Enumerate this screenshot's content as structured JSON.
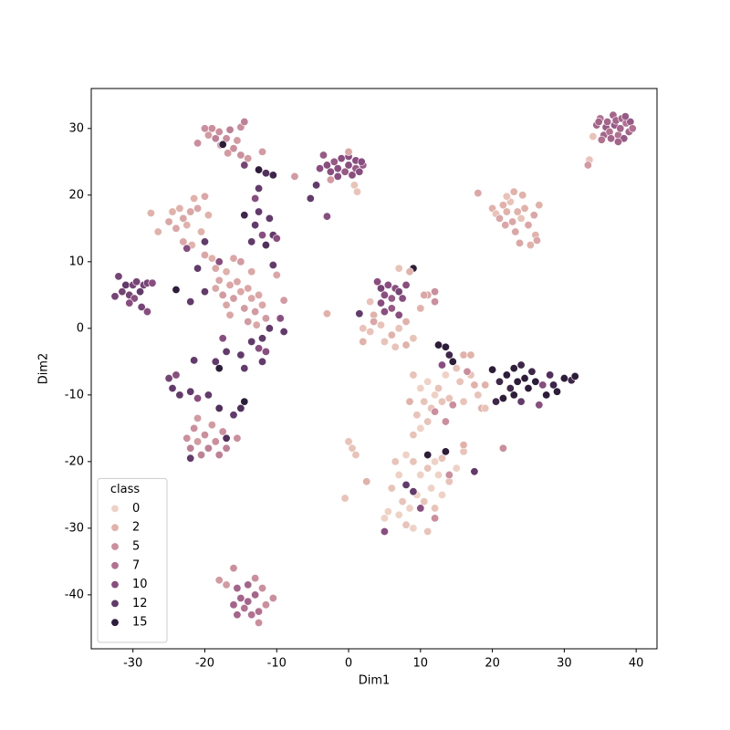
{
  "chart_data": {
    "type": "scatter",
    "xlabel": "Dim1",
    "ylabel": "Dim2",
    "xlim": [
      -35.8,
      42.9
    ],
    "ylim": [
      -48.1,
      36.0
    ],
    "xticks": [
      -30,
      -20,
      -10,
      0,
      10,
      20,
      30,
      40
    ],
    "yticks": [
      -40,
      -30,
      -20,
      -10,
      0,
      10,
      20,
      30
    ],
    "legend_title": "class",
    "legend_loc": "lower left",
    "hue_levels": [
      0,
      2,
      5,
      7,
      10,
      12,
      15
    ],
    "hue_colors": [
      "#efd1c5",
      "#e2b2aa",
      "#cc8e9c",
      "#b27190",
      "#8a4d80",
      "#633a6c",
      "#2d1d3b"
    ],
    "x": [
      34.5,
      35,
      35.5,
      35.8,
      36,
      36.3,
      36.8,
      37,
      37.2,
      37.5,
      37.8,
      38,
      38.3,
      38.6,
      39,
      39.2,
      39.5,
      36.5,
      35.2,
      37.5,
      38.5,
      34.8,
      33.5,
      33.3,
      34,
      18,
      20,
      20.5,
      21,
      21.5,
      21.8,
      22,
      22.5,
      22.8,
      23,
      23.2,
      23.5,
      23.8,
      24,
      24.5,
      25,
      25.3,
      25.8,
      26,
      26.5,
      26.2,
      22,
      24.2,
      -4,
      -3.5,
      -3,
      -2.5,
      -2,
      -1.5,
      -1,
      -0.5,
      0,
      0,
      0.5,
      1,
      1,
      1.5,
      2,
      -1.5,
      1.8,
      0,
      0.8,
      1.2,
      -2.5,
      -7.5,
      -5.3,
      -4.5,
      -3,
      -20,
      -19.5,
      -19,
      -18.5,
      -18,
      -17.8,
      -17,
      -16.5,
      -16,
      -15.5,
      -15,
      -14.5,
      -15,
      -16.8,
      -21,
      -14,
      -12,
      -17.5,
      -14.5,
      -27.5,
      -25,
      -24.5,
      -24,
      -23.5,
      -23,
      -22.5,
      -22,
      -21.5,
      -21,
      -20.5,
      -20,
      -19.5,
      -26.5,
      -23,
      -21.8,
      -20,
      -19,
      -18.5,
      -17,
      -18,
      -32,
      -31.5,
      -31,
      -30.5,
      -30,
      -29.8,
      -29.5,
      -29,
      -28.5,
      -28,
      -32.5,
      -30.5,
      -28.8,
      -28,
      -27.3,
      -18.5,
      -17.5,
      -17,
      -16.5,
      -16,
      -15.5,
      -15,
      -14.5,
      -14,
      -13.5,
      -13,
      -12.5,
      -12,
      -11.5,
      -16,
      -15,
      -13.5,
      -10,
      -9,
      -16.5,
      -14,
      -12.8,
      -14.5,
      -12.5,
      -13,
      -11,
      -10.5,
      -12,
      -13.5,
      -11.5,
      -10.5,
      -10,
      -12.5,
      -11.5,
      -10.5,
      -12.5,
      -13,
      -20,
      -22.5,
      -21,
      -18,
      -20,
      -22,
      -24,
      -9.5,
      -9,
      -11,
      -12,
      -12.5,
      -13.5,
      -15,
      -14.5,
      -12,
      -11.5,
      -17,
      -17.5,
      -18.5,
      -21.5,
      -18,
      -25,
      -24.5,
      -24,
      -23.5,
      -22,
      -21,
      -19.5,
      -18,
      -16,
      -15,
      -14.5,
      -17,
      -22.5,
      -22,
      -21.5,
      -21,
      -20.5,
      -20,
      -19.5,
      -19,
      -18.5,
      -18,
      -17.5,
      -17,
      -15.5,
      -21,
      -22,
      -16,
      -18,
      -15.5,
      -15,
      -14.5,
      -14,
      -14,
      -13.5,
      -13,
      -12.5,
      -16,
      -15.5,
      -13,
      -12,
      -10.5,
      -11.5,
      -12.5,
      -17,
      4,
      4.5,
      5,
      5.5,
      6,
      6.5,
      7,
      7.5,
      8,
      6,
      7,
      5,
      4.5,
      9,
      12,
      12,
      11,
      3,
      3.5,
      2,
      3.5,
      4.5,
      6,
      7,
      8,
      9,
      10,
      10.5,
      6.5,
      8,
      5,
      7,
      8.5,
      3,
      2,
      -3,
      1.5,
      12.5,
      13.5,
      14,
      14.5,
      13,
      20,
      21,
      21.5,
      22,
      22.5,
      23,
      23.5,
      24,
      24.5,
      25,
      25.5,
      26,
      23,
      20.5,
      27.5,
      28,
      28.5,
      29,
      30,
      31,
      31.5,
      27,
      24,
      26.5,
      8,
      9,
      10,
      11,
      12,
      13,
      12.5,
      11.5,
      10.5,
      9.5,
      8.5,
      7.5,
      7,
      8,
      9,
      6,
      5.5,
      5,
      12,
      13,
      14,
      15,
      16,
      7,
      6.5,
      0,
      0.5,
      1,
      -0.5,
      2.5,
      11,
      8,
      10,
      9,
      11,
      13.5,
      17.5,
      5,
      12,
      14,
      9,
      10,
      10.5,
      11,
      11.5,
      12,
      12.5,
      13,
      13.5,
      14,
      9.5,
      10,
      9,
      11,
      15,
      16,
      17,
      17.5,
      18,
      18.5,
      16,
      19,
      15.5,
      12,
      13.5,
      14.5,
      16.5,
      8.5,
      17,
      16,
      21.5,
      19
    ],
    "y": [
      30.5,
      31.5,
      29,
      30.2,
      31,
      29.5,
      32,
      30.5,
      31.2,
      29,
      30,
      31.5,
      28.5,
      30.8,
      29.5,
      31,
      30,
      28.5,
      28.3,
      28,
      31.8,
      31,
      25.3,
      24.5,
      28.8,
      20.3,
      18,
      17.2,
      16.5,
      18.5,
      15.5,
      17.5,
      19,
      16,
      20.5,
      14.5,
      17.5,
      12.8,
      16.5,
      18,
      15.5,
      12.5,
      17,
      14,
      18.5,
      13.2,
      19.8,
      20,
      24,
      26,
      24.5,
      23.5,
      25,
      24,
      25.5,
      23.5,
      24.5,
      25.8,
      23,
      24,
      25.2,
      23.5,
      24.5,
      22.8,
      25,
      26.5,
      21.5,
      20.5,
      22.3,
      22.8,
      19.5,
      21.5,
      16.8,
      30,
      29,
      30,
      28.5,
      29.5,
      27.5,
      28.5,
      29.8,
      27,
      28.2,
      30.2,
      31,
      26,
      26.3,
      27.8,
      25.5,
      26.5,
      27.6,
      24.5,
      17.3,
      16,
      17.5,
      15,
      18,
      16.5,
      15.5,
      17.5,
      19.5,
      18,
      14.5,
      19.8,
      17,
      14.5,
      13,
      12.5,
      11,
      10.5,
      9,
      8.5,
      7.2,
      7.8,
      5.5,
      6.5,
      5,
      6.5,
      4.5,
      7,
      5.5,
      6.5,
      6.8,
      4.8,
      3.8,
      3.2,
      2.5,
      6.8,
      6,
      5,
      3.5,
      6.5,
      4.5,
      7,
      5.5,
      3,
      6,
      4.5,
      2.5,
      5,
      3.5,
      1.5,
      10.5,
      10,
      8.5,
      8,
      4.2,
      2,
      1,
      0.5,
      17,
      17.5,
      15.5,
      16.5,
      14,
      14,
      13,
      12.5,
      9.5,
      13.5,
      23.8,
      23.3,
      23,
      21,
      19.5,
      13,
      12,
      9,
      10,
      5.5,
      4,
      5.8,
      1.5,
      -0.5,
      0,
      -1.5,
      -3,
      -2,
      -4,
      -6,
      -5,
      -3.5,
      -3.5,
      -1.5,
      -5,
      -4.8,
      -6,
      -7.5,
      -9,
      -7,
      -10,
      -9.5,
      -10.5,
      -10,
      -12,
      -13,
      -12,
      -11,
      -16.5,
      -16.5,
      -18,
      -15,
      -17,
      -19,
      -16,
      -18,
      -14.5,
      -17,
      -19,
      -15.5,
      -18,
      -16.5,
      -13.5,
      -19.5,
      -36,
      -37.8,
      -39,
      -40.5,
      -42,
      -38.5,
      -41,
      -43,
      -40,
      -42.5,
      -41.5,
      -43,
      -37.5,
      -39,
      -40.5,
      -41.5,
      -44.2,
      -38.5,
      7,
      6,
      5,
      6.5,
      4.5,
      6,
      5.5,
      4.5,
      6.5,
      3,
      2,
      2.5,
      3.8,
      9,
      5.5,
      4,
      5,
      4,
      2,
      0,
      1,
      0.5,
      -1,
      0,
      1,
      -1.5,
      3,
      5,
      -2.8,
      -2.5,
      -2,
      9,
      8.5,
      -0.5,
      -2,
      2.2,
      2.2,
      -2.5,
      -2.8,
      -4,
      -5,
      -5.5,
      -6.2,
      -8,
      -10.5,
      -7,
      -9,
      -6,
      -8,
      -5.5,
      -7.5,
      -9,
      -6.5,
      -8,
      -10,
      -11,
      -10,
      -7,
      -8.5,
      -9.5,
      -7.5,
      -7.8,
      -7.2,
      -8.5,
      -11,
      -11.5,
      -19,
      -20,
      -22,
      -21,
      -20,
      -19.5,
      -22,
      -24,
      -26,
      -25,
      -27,
      -26,
      -28,
      -29.5,
      -30,
      -24,
      -27.5,
      -28.5,
      -27,
      -25,
      -23,
      -21,
      -18.5,
      -22,
      -20,
      -17,
      -18,
      -19,
      -25.5,
      -23,
      -30.5,
      -23.5,
      -27,
      -24.5,
      -19,
      -18.5,
      -21.5,
      -30.5,
      -28.5,
      -22,
      -7,
      -9,
      -11,
      -8,
      -12,
      -10,
      -9,
      -11,
      -7,
      -10.5,
      -13,
      -15,
      -16,
      -14,
      -6,
      -4,
      -7,
      -8.5,
      -10,
      -12,
      -11,
      -8.5,
      -8,
      -12.5,
      -14,
      -11.5,
      -6.5,
      -11,
      -4,
      -17.5,
      -18,
      -12
    ],
    "hue": [
      8,
      7,
      8,
      9,
      8,
      7,
      8,
      9,
      8,
      7,
      8,
      8,
      9,
      7,
      8,
      9,
      7,
      8,
      7,
      8,
      9,
      8,
      1,
      4,
      1,
      3,
      2,
      1,
      3,
      2,
      3,
      2,
      1,
      3,
      2,
      3,
      2,
      3,
      1,
      2,
      3,
      2,
      3,
      2,
      2,
      3,
      1,
      2,
      10,
      9,
      10,
      10,
      9,
      10,
      10,
      9,
      10,
      10,
      10,
      9,
      10,
      10,
      9,
      10,
      10,
      3,
      1,
      1,
      4,
      4,
      12,
      12,
      10,
      5,
      4,
      5,
      6,
      5,
      4,
      5,
      6,
      5,
      4,
      5,
      6,
      5,
      4,
      5,
      4,
      4,
      15,
      11,
      2,
      3,
      2,
      3,
      2,
      3,
      2,
      3,
      2,
      3,
      2,
      3,
      2,
      2,
      3,
      2,
      3,
      2,
      3,
      2,
      3,
      11,
      11,
      12,
      11,
      11,
      10,
      11,
      12,
      11,
      11,
      11,
      10,
      11,
      10,
      10,
      3,
      4,
      3,
      3,
      4,
      3,
      3,
      4,
      3,
      3,
      4,
      3,
      3,
      4,
      3,
      4,
      3,
      3,
      4,
      3,
      4,
      3,
      14,
      12,
      12,
      12,
      12,
      10,
      12,
      13,
      12,
      10,
      15,
      13,
      14,
      12,
      10,
      12,
      10,
      12,
      10,
      12,
      12,
      15,
      10,
      12,
      12,
      12,
      10,
      12,
      12,
      12,
      12,
      10,
      12,
      10,
      12,
      12,
      15,
      11,
      12,
      10,
      12,
      12,
      10,
      12,
      13,
      12,
      13,
      15,
      13,
      5,
      6,
      5,
      4,
      6,
      5,
      6,
      4,
      5,
      6,
      5,
      6,
      5,
      4,
      12,
      5,
      4,
      8,
      8,
      7,
      8,
      8,
      7,
      8,
      7,
      8,
      8,
      5,
      5,
      5,
      5,
      5,
      4,
      10,
      11,
      10,
      10,
      9,
      10,
      11,
      10,
      10,
      9,
      10,
      10,
      10,
      15,
      5,
      5,
      3,
      1,
      2,
      1,
      3,
      1,
      2,
      1,
      2,
      1,
      2,
      3,
      1,
      2,
      1,
      1,
      2,
      1,
      2,
      2,
      12,
      15,
      15,
      14,
      15,
      10,
      15,
      14,
      15,
      15,
      14,
      15,
      15,
      14,
      15,
      15,
      14,
      15,
      15,
      14,
      15,
      13,
      14,
      15,
      15,
      14,
      15,
      10,
      12,
      10,
      0,
      1,
      0,
      1,
      0,
      1,
      0,
      0,
      1,
      0,
      0,
      1,
      0,
      1,
      0,
      1,
      0,
      0,
      1,
      0,
      1,
      0,
      1,
      0,
      1,
      1,
      1,
      1,
      1,
      2,
      1,
      12,
      10,
      12,
      15,
      15,
      12,
      10,
      5,
      5,
      1,
      0,
      1,
      0,
      1,
      0,
      1,
      1,
      0,
      1,
      1,
      0,
      1,
      1,
      1,
      2,
      1,
      2,
      1,
      2,
      1,
      2,
      1,
      5,
      5,
      5,
      5,
      2,
      2,
      2,
      5,
      1
    ]
  }
}
